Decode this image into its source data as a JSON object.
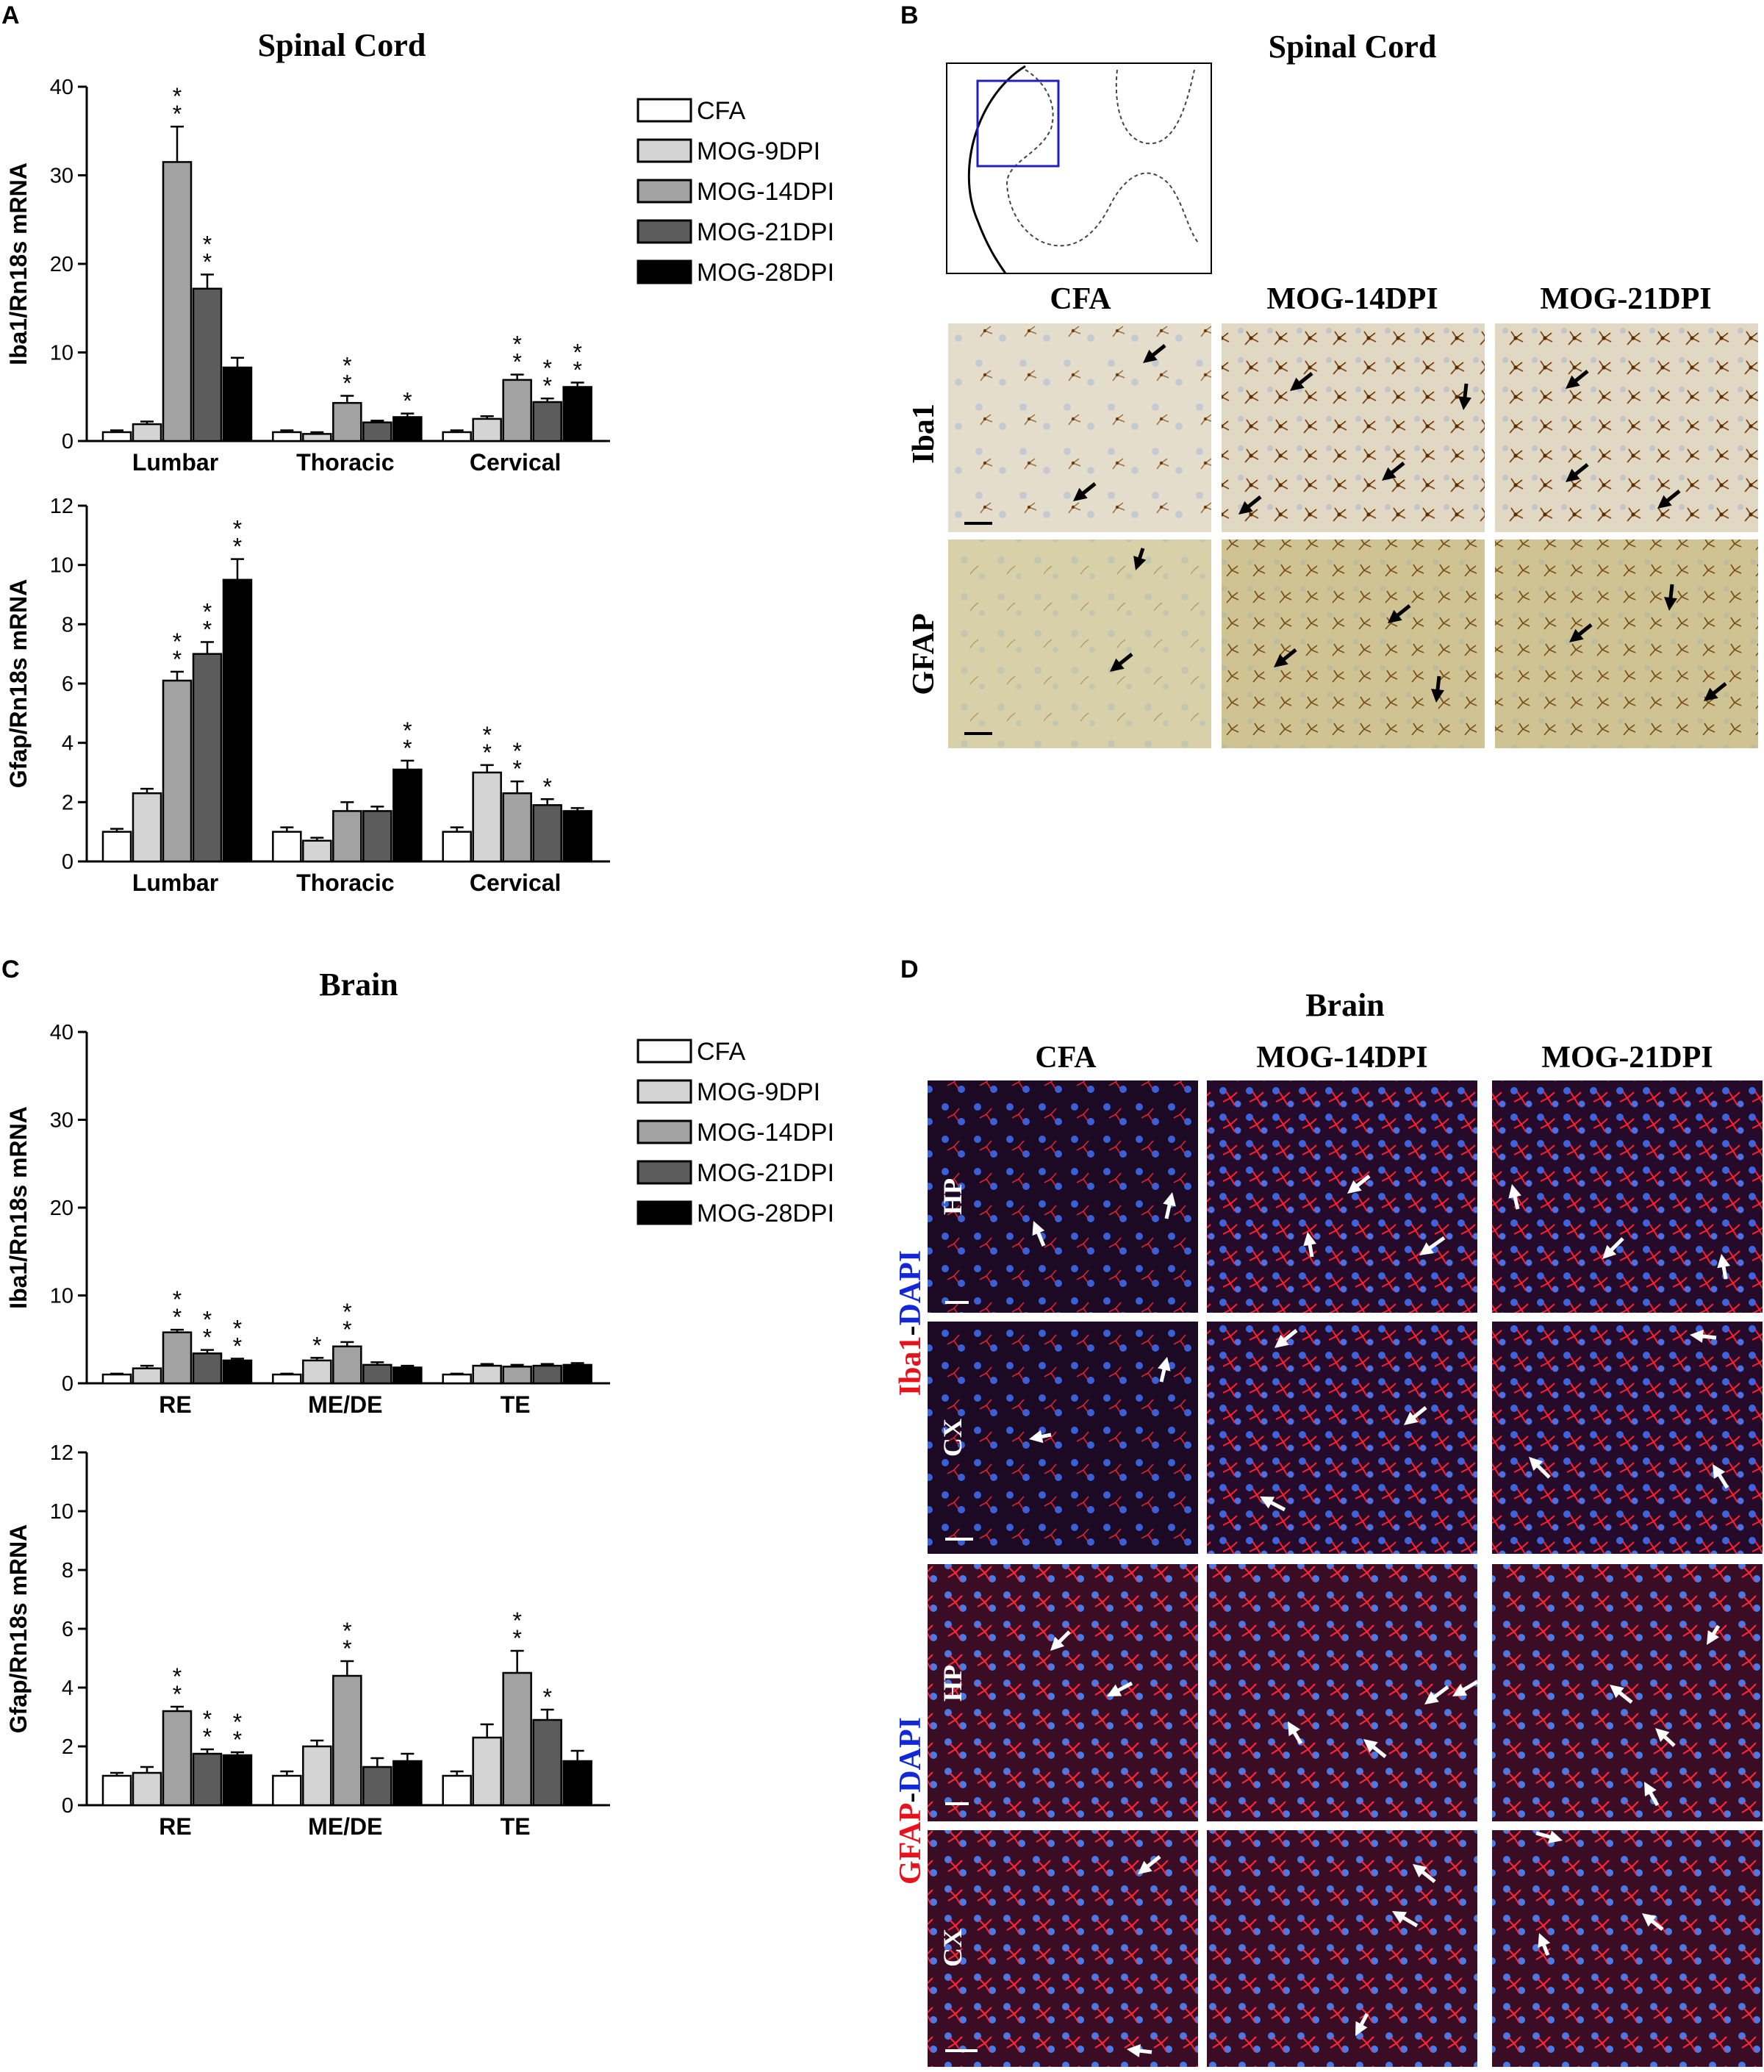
{
  "panels": {
    "A": {
      "letter": "A",
      "title": "Spinal Cord"
    },
    "B": {
      "letter": "B",
      "title": "Spinal Cord"
    },
    "C": {
      "letter": "C",
      "title": "Brain"
    },
    "D": {
      "letter": "D",
      "title": "Brain"
    }
  },
  "legend": [
    {
      "label": "CFA",
      "color": "#ffffff"
    },
    {
      "label": "MOG-9DPI",
      "color": "#d4d4d4"
    },
    {
      "label": "MOG-14DPI",
      "color": "#a2a2a2"
    },
    {
      "label": "MOG-21DPI",
      "color": "#5c5c5c"
    },
    {
      "label": "MOG-28DPI",
      "color": "#000000"
    }
  ],
  "chart_data": [
    {
      "type": "bar",
      "ylabel": "Iba1/Rn18s mRNA",
      "ylim": [
        0,
        40
      ],
      "yticks": [
        0,
        10,
        20,
        30,
        40
      ],
      "categories": [
        "Lumbar",
        "Thoracic",
        "Cervical"
      ],
      "series": [
        {
          "name": "CFA",
          "values": [
            1.0,
            1.0,
            1.0
          ],
          "errors": [
            0.2,
            0.2,
            0.2
          ],
          "stars": [
            "",
            "",
            ""
          ]
        },
        {
          "name": "MOG-9DPI",
          "values": [
            1.9,
            0.8,
            2.5
          ],
          "errors": [
            0.3,
            0.2,
            0.3
          ],
          "stars": [
            "",
            "",
            ""
          ]
        },
        {
          "name": "MOG-14DPI",
          "values": [
            31.5,
            4.3,
            6.9
          ],
          "errors": [
            4.0,
            0.8,
            0.6
          ],
          "stars": [
            "**",
            "**",
            "**"
          ]
        },
        {
          "name": "MOG-21DPI",
          "values": [
            17.2,
            2.1,
            4.4
          ],
          "errors": [
            1.6,
            0.2,
            0.4
          ],
          "stars": [
            "**",
            "",
            "**"
          ]
        },
        {
          "name": "MOG-28DPI",
          "values": [
            8.3,
            2.7,
            6.1
          ],
          "errors": [
            1.1,
            0.4,
            0.5
          ],
          "stars": [
            "",
            "*",
            "**"
          ]
        }
      ]
    },
    {
      "type": "bar",
      "ylabel": "Gfap/Rn18s mRNA",
      "ylim": [
        0,
        12
      ],
      "yticks": [
        0,
        2,
        4,
        6,
        8,
        10,
        12
      ],
      "categories": [
        "Lumbar",
        "Thoracic",
        "Cervical"
      ],
      "series": [
        {
          "name": "CFA",
          "values": [
            1.0,
            1.0,
            1.0
          ],
          "errors": [
            0.1,
            0.15,
            0.15
          ],
          "stars": [
            "",
            "",
            ""
          ]
        },
        {
          "name": "MOG-9DPI",
          "values": [
            2.3,
            0.7,
            3.0
          ],
          "errors": [
            0.15,
            0.1,
            0.25
          ],
          "stars": [
            "",
            "",
            "**"
          ]
        },
        {
          "name": "MOG-14DPI",
          "values": [
            6.1,
            1.7,
            2.3
          ],
          "errors": [
            0.3,
            0.3,
            0.4
          ],
          "stars": [
            "**",
            "",
            "**"
          ]
        },
        {
          "name": "MOG-21DPI",
          "values": [
            7.0,
            1.7,
            1.9
          ],
          "errors": [
            0.4,
            0.15,
            0.2
          ],
          "stars": [
            "**",
            "",
            "*"
          ]
        },
        {
          "name": "MOG-28DPI",
          "values": [
            9.5,
            3.1,
            1.7
          ],
          "errors": [
            0.7,
            0.3,
            0.1
          ],
          "stars": [
            "**",
            "**",
            ""
          ]
        }
      ]
    },
    {
      "type": "bar",
      "ylabel": "Iba1/Rn18s mRNA",
      "ylim": [
        0,
        40
      ],
      "yticks": [
        0,
        10,
        20,
        30,
        40
      ],
      "categories": [
        "RE",
        "ME/DE",
        "TE"
      ],
      "series": [
        {
          "name": "CFA",
          "values": [
            1.0,
            1.0,
            1.0
          ],
          "errors": [
            0.1,
            0.1,
            0.1
          ],
          "stars": [
            "",
            "",
            ""
          ]
        },
        {
          "name": "MOG-9DPI",
          "values": [
            1.7,
            2.6,
            2.0
          ],
          "errors": [
            0.3,
            0.3,
            0.2
          ],
          "stars": [
            "",
            "*",
            ""
          ]
        },
        {
          "name": "MOG-14DPI",
          "values": [
            5.8,
            4.2,
            1.9
          ],
          "errors": [
            0.3,
            0.5,
            0.2
          ],
          "stars": [
            "**",
            "**",
            ""
          ]
        },
        {
          "name": "MOG-21DPI",
          "values": [
            3.4,
            2.1,
            2.0
          ],
          "errors": [
            0.4,
            0.3,
            0.2
          ],
          "stars": [
            "**",
            "",
            ""
          ]
        },
        {
          "name": "MOG-28DPI",
          "values": [
            2.6,
            1.8,
            2.1
          ],
          "errors": [
            0.2,
            0.2,
            0.2
          ],
          "stars": [
            "**",
            "",
            ""
          ]
        }
      ]
    },
    {
      "type": "bar",
      "ylabel": "Gfap/Rn18s mRNA",
      "ylim": [
        0,
        12
      ],
      "yticks": [
        0,
        2,
        4,
        6,
        8,
        10,
        12
      ],
      "categories": [
        "RE",
        "ME/DE",
        "TE"
      ],
      "series": [
        {
          "name": "CFA",
          "values": [
            1.0,
            1.0,
            1.0
          ],
          "errors": [
            0.1,
            0.15,
            0.15
          ],
          "stars": [
            "",
            "",
            ""
          ]
        },
        {
          "name": "MOG-9DPI",
          "values": [
            1.1,
            2.0,
            2.3
          ],
          "errors": [
            0.2,
            0.2,
            0.45
          ],
          "stars": [
            "",
            "",
            ""
          ]
        },
        {
          "name": "MOG-14DPI",
          "values": [
            3.2,
            4.4,
            4.5
          ],
          "errors": [
            0.15,
            0.5,
            0.75
          ],
          "stars": [
            "**",
            "**",
            "**"
          ]
        },
        {
          "name": "MOG-21DPI",
          "values": [
            1.75,
            1.3,
            2.9
          ],
          "errors": [
            0.15,
            0.3,
            0.35
          ],
          "stars": [
            "**",
            "",
            "*"
          ]
        },
        {
          "name": "MOG-28DPI",
          "values": [
            1.7,
            1.5,
            1.5
          ],
          "errors": [
            0.1,
            0.25,
            0.35
          ],
          "stars": [
            "**",
            "",
            ""
          ]
        }
      ]
    }
  ],
  "images": {
    "columns": [
      "CFA",
      "MOG-14DPI",
      "MOG-21DPI"
    ],
    "spinal_rows": [
      "Iba1",
      "GFAP"
    ],
    "brain_regions": [
      "HP",
      "CX"
    ],
    "brain_stain_iba": {
      "red": "Iba1",
      "dash": "-",
      "blue": "DAPI"
    },
    "brain_stain_gfap": {
      "red": "GFAP",
      "dash": "-",
      "blue": "DAPI"
    },
    "colors": {
      "ihc_bg": "#e6dfcf",
      "ihc_bg_gfap": "#d7cfa4",
      "ihc_stain": "#7a4a14",
      "if_bg": "#1a0a22",
      "if_red": "#ff2030",
      "if_blue": "#3a6ae0",
      "stain_red": "#e8121c",
      "stain_blue": "#1228d8"
    }
  }
}
